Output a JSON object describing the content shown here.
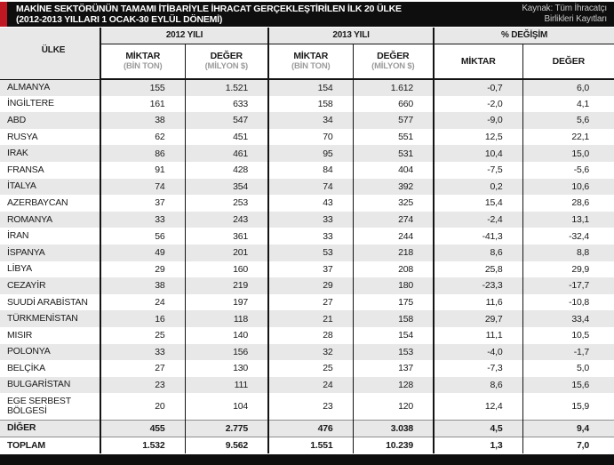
{
  "colors": {
    "accent_red": "#c01823",
    "header_black": "#0e0e0e",
    "row_stripe": "#e8e8e8",
    "unit_gray": "#9b9b9b"
  },
  "header": {
    "title_line1": "MAKİNE SEKTÖRÜNÜN TAMAMI İTİBARİYLE İHRACAT GERÇEKLEŞTİRİLEN İLK 20 ÜLKE",
    "title_line2": "(2012-2013 YILLARI 1 OCAK-30 EYLÜL DÖNEMİ)",
    "source_line1": "Kaynak: Tüm İhracatçı",
    "source_line2": "Birlikleri Kayıtları"
  },
  "table": {
    "country_header": "ÜLKE",
    "group_headers": [
      "2012 YILI",
      "2013 YILI",
      "% DEĞİŞİM"
    ],
    "sub_headers": [
      {
        "label": "MİKTAR",
        "unit": "(BİN TON)"
      },
      {
        "label": "DEĞER",
        "unit": "(MİLYON $)"
      },
      {
        "label": "MİKTAR",
        "unit": "(BİN TON)"
      },
      {
        "label": "DEĞER",
        "unit": "(MİLYON $)"
      },
      {
        "label": "MİKTAR",
        "unit": ""
      },
      {
        "label": "DEĞER",
        "unit": ""
      }
    ],
    "rows": [
      {
        "country": "ALMANYA",
        "values": [
          "155",
          "1.521",
          "154",
          "1.612",
          "-0,7",
          "6,0"
        ]
      },
      {
        "country": "İNGİLTERE",
        "values": [
          "161",
          "633",
          "158",
          "660",
          "-2,0",
          "4,1"
        ]
      },
      {
        "country": "ABD",
        "values": [
          "38",
          "547",
          "34",
          "577",
          "-9,0",
          "5,6"
        ]
      },
      {
        "country": "RUSYA",
        "values": [
          "62",
          "451",
          "70",
          "551",
          "12,5",
          "22,1"
        ]
      },
      {
        "country": "IRAK",
        "values": [
          "86",
          "461",
          "95",
          "531",
          "10,4",
          "15,0"
        ]
      },
      {
        "country": "FRANSA",
        "values": [
          "91",
          "428",
          "84",
          "404",
          "-7,5",
          "-5,6"
        ]
      },
      {
        "country": "İTALYA",
        "values": [
          "74",
          "354",
          "74",
          "392",
          "0,2",
          "10,6"
        ]
      },
      {
        "country": "AZERBAYCAN",
        "values": [
          "37",
          "253",
          "43",
          "325",
          "15,4",
          "28,6"
        ]
      },
      {
        "country": "ROMANYA",
        "values": [
          "33",
          "243",
          "33",
          "274",
          "-2,4",
          "13,1"
        ]
      },
      {
        "country": "İRAN",
        "values": [
          "56",
          "361",
          "33",
          "244",
          "-41,3",
          "-32,4"
        ]
      },
      {
        "country": "İSPANYA",
        "values": [
          "49",
          "201",
          "53",
          "218",
          "8,6",
          "8,8"
        ]
      },
      {
        "country": "LİBYA",
        "values": [
          "29",
          "160",
          "37",
          "208",
          "25,8",
          "29,9"
        ]
      },
      {
        "country": "CEZAYİR",
        "values": [
          "38",
          "219",
          "29",
          "180",
          "-23,3",
          "-17,7"
        ]
      },
      {
        "country": "SUUDİ ARABİSTAN",
        "values": [
          "24",
          "197",
          "27",
          "175",
          "11,6",
          "-10,8"
        ]
      },
      {
        "country": "TÜRKMENİSTAN",
        "values": [
          "16",
          "118",
          "21",
          "158",
          "29,7",
          "33,4"
        ]
      },
      {
        "country": "MISIR",
        "values": [
          "25",
          "140",
          "28",
          "154",
          "11,1",
          "10,5"
        ]
      },
      {
        "country": "POLONYA",
        "values": [
          "33",
          "156",
          "32",
          "153",
          "-4,0",
          "-1,7"
        ]
      },
      {
        "country": "BELÇİKA",
        "values": [
          "27",
          "130",
          "25",
          "137",
          "-7,3",
          "5,0"
        ]
      },
      {
        "country": "BULGARİSTAN",
        "values": [
          "23",
          "111",
          "24",
          "128",
          "8,6",
          "15,6"
        ]
      },
      {
        "country": "EGE SERBEST BÖLGESİ",
        "values": [
          "20",
          "104",
          "23",
          "120",
          "12,4",
          "15,9"
        ]
      },
      {
        "country": "DİĞER",
        "summary": true,
        "values": [
          "455",
          "2.775",
          "476",
          "3.038",
          "4,5",
          "9,4"
        ]
      },
      {
        "country": "TOPLAM",
        "summary": true,
        "values": [
          "1.532",
          "9.562",
          "1.551",
          "10.239",
          "1,3",
          "7,0"
        ]
      }
    ]
  }
}
